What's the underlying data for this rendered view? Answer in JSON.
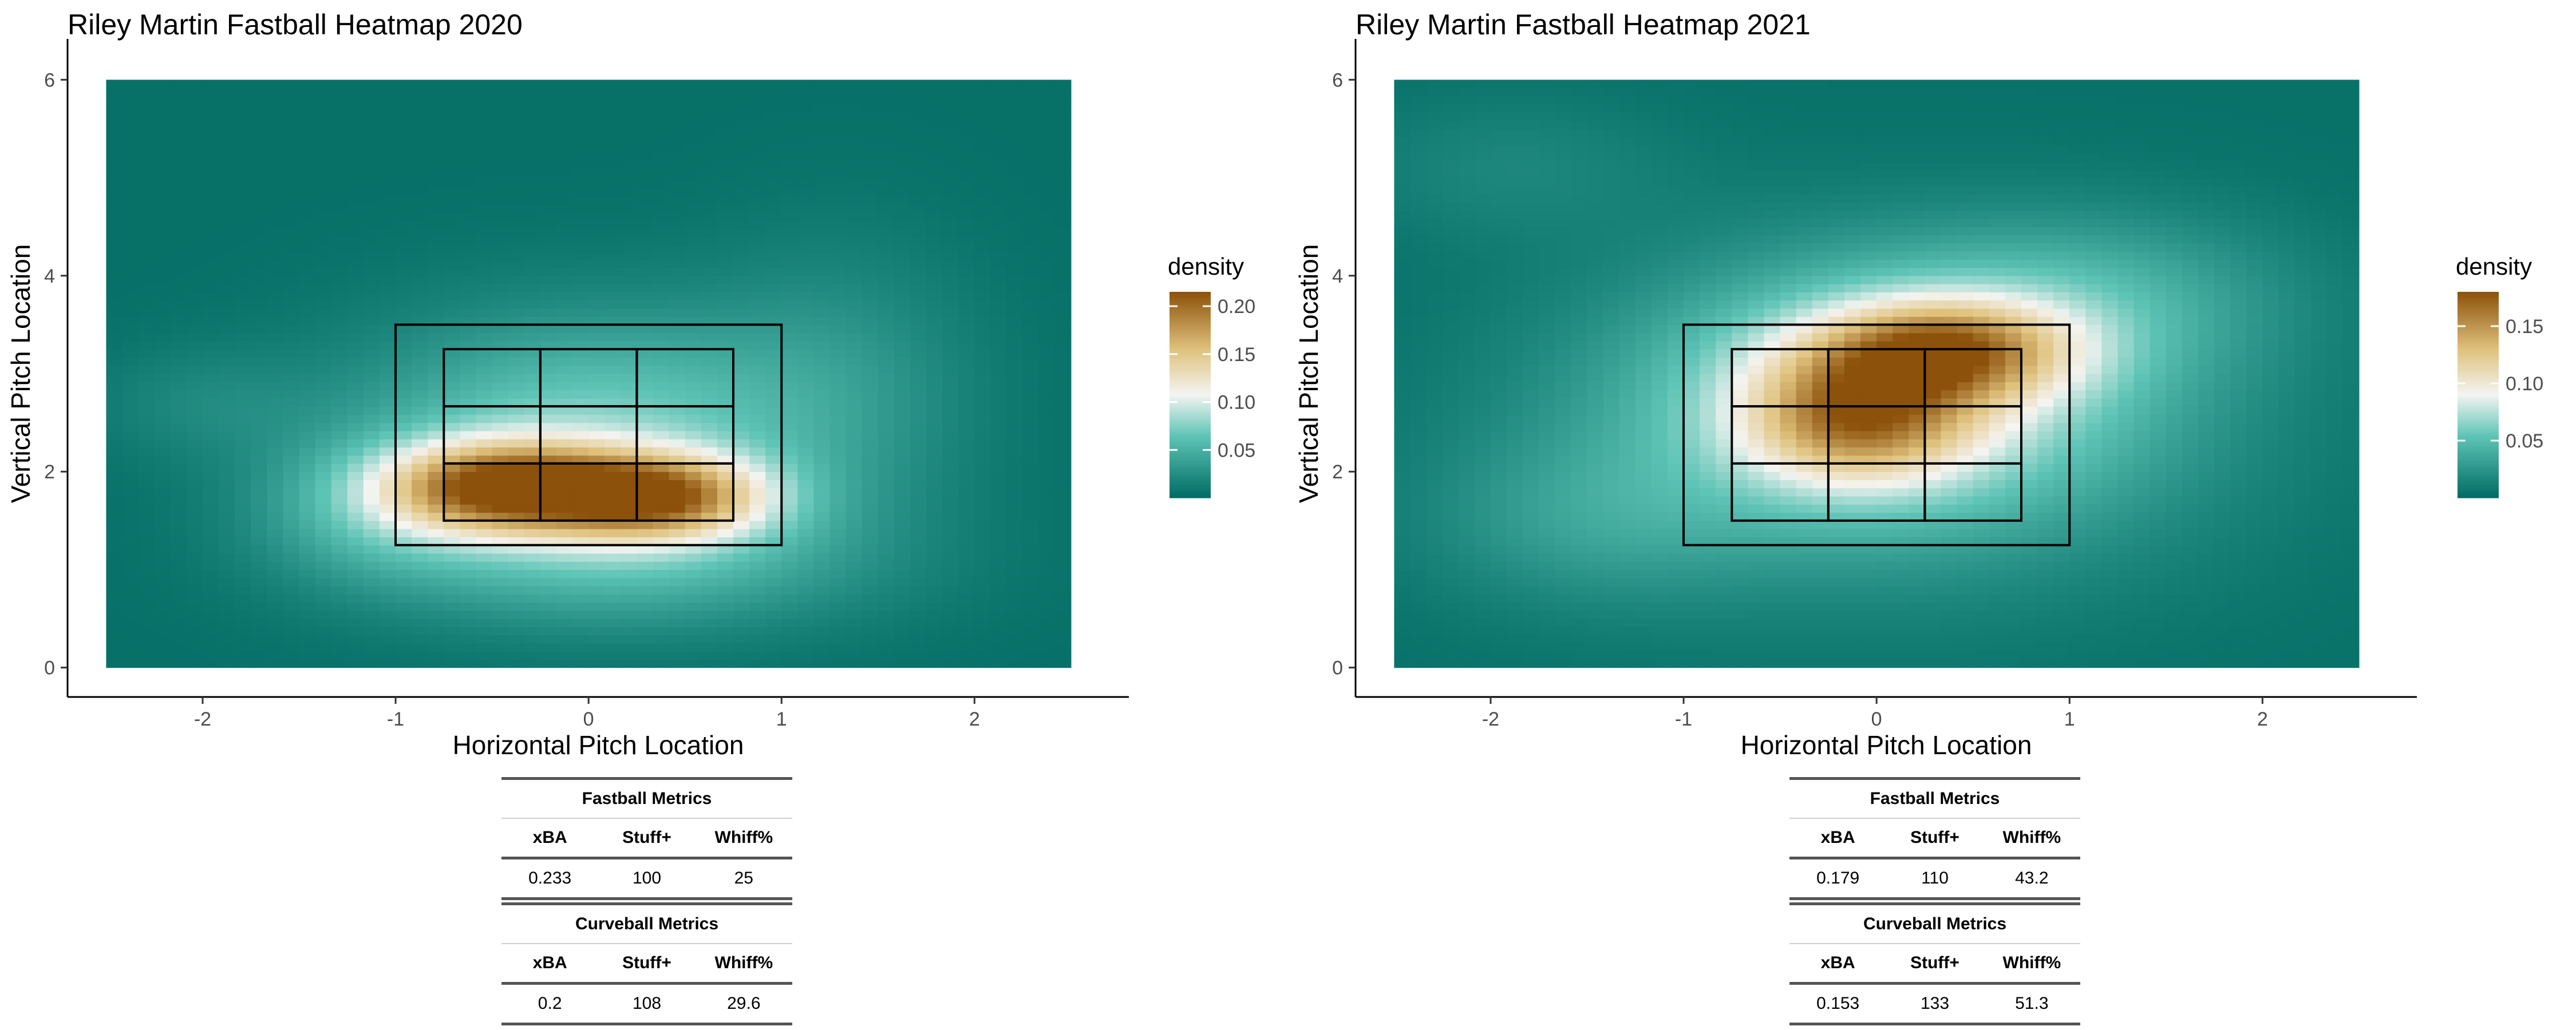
{
  "chart_data": [
    {
      "type": "heatmap",
      "title": "Riley Martin Fastball Heatmap 2020",
      "xlabel": "Horizontal Pitch Location",
      "ylabel": "Vertical Pitch Location",
      "xlim": [
        -2.7,
        2.8
      ],
      "ylim": [
        -0.3,
        6.3
      ],
      "x_ticks": [
        -2,
        -1,
        0,
        1,
        2
      ],
      "y_ticks": [
        0,
        2,
        4,
        6
      ],
      "legend_title": "density",
      "legend_ticks": [
        "0.05",
        "0.10",
        "0.15",
        "0.20"
      ],
      "legend_tick_values": [
        0.05,
        0.1,
        0.15,
        0.2
      ],
      "density_range": [
        0.0,
        0.215
      ],
      "heat_extent": {
        "x": [
          -2.5,
          2.5
        ],
        "y": [
          0.0,
          6.0
        ]
      },
      "strike_zone_outer": {
        "x": [
          -1.0,
          1.0
        ],
        "y": [
          1.25,
          3.5
        ]
      },
      "strike_zone_inner": {
        "x": [
          -0.75,
          0.75
        ],
        "y": [
          1.5,
          3.25
        ],
        "cols": 3,
        "rows": 3
      },
      "hotspots": [
        {
          "x": -0.45,
          "y": 1.85,
          "sx": 0.42,
          "sy": 0.32,
          "amp": 0.16
        },
        {
          "x": 0.35,
          "y": 1.75,
          "sx": 0.4,
          "sy": 0.3,
          "amp": 0.15
        },
        {
          "x": 0.0,
          "y": 2.35,
          "sx": 0.85,
          "sy": 0.85,
          "amp": 0.07
        },
        {
          "x": 0.2,
          "y": 1.1,
          "sx": 0.9,
          "sy": 0.5,
          "amp": 0.04
        },
        {
          "x": -1.1,
          "y": 1.6,
          "sx": 0.45,
          "sy": 0.5,
          "amp": 0.035
        },
        {
          "x": 1.3,
          "y": 3.0,
          "sx": 0.5,
          "sy": 1.0,
          "amp": 0.02
        },
        {
          "x": -2.0,
          "y": 2.7,
          "sx": 0.4,
          "sy": 0.4,
          "amp": 0.015
        }
      ],
      "metrics": {
        "fastball_title": "Fastball Metrics",
        "curveball_title": "Curveball Metrics",
        "headers": [
          "xBA",
          "Stuff+",
          "Whiff%"
        ],
        "fastball_values": [
          "0.233",
          "100",
          "25"
        ],
        "curveball_values": [
          "0.2",
          "108",
          "29.6"
        ]
      }
    },
    {
      "type": "heatmap",
      "title": "Riley Martin Fastball Heatmap 2021",
      "xlabel": "Horizontal Pitch Location",
      "ylabel": "Vertical Pitch Location",
      "xlim": [
        -2.7,
        2.8
      ],
      "ylim": [
        -0.3,
        6.3
      ],
      "x_ticks": [
        -2,
        -1,
        0,
        1,
        2
      ],
      "y_ticks": [
        0,
        2,
        4,
        6
      ],
      "legend_title": "density",
      "legend_ticks": [
        "0.05",
        "0.10",
        "0.15"
      ],
      "legend_tick_values": [
        0.05,
        0.1,
        0.15
      ],
      "density_range": [
        0.0,
        0.18
      ],
      "heat_extent": {
        "x": [
          -2.5,
          2.5
        ],
        "y": [
          0.0,
          6.0
        ]
      },
      "strike_zone_outer": {
        "x": [
          -1.0,
          1.0
        ],
        "y": [
          1.25,
          3.5
        ]
      },
      "strike_zone_inner": {
        "x": [
          -0.75,
          0.75
        ],
        "y": [
          1.5,
          3.25
        ],
        "cols": 3,
        "rows": 3
      },
      "hotspots": [
        {
          "x": 0.35,
          "y": 3.25,
          "sx": 0.45,
          "sy": 0.35,
          "amp": 0.1
        },
        {
          "x": -0.1,
          "y": 2.55,
          "sx": 0.4,
          "sy": 0.45,
          "amp": 0.09
        },
        {
          "x": 0.1,
          "y": 2.9,
          "sx": 0.9,
          "sy": 0.9,
          "amp": 0.06
        },
        {
          "x": 0.0,
          "y": 2.3,
          "sx": 1.2,
          "sy": 1.1,
          "amp": 0.03
        },
        {
          "x": 1.2,
          "y": 3.8,
          "sx": 0.7,
          "sy": 0.6,
          "amp": 0.025
        },
        {
          "x": -1.5,
          "y": 1.5,
          "sx": 0.6,
          "sy": 0.6,
          "amp": 0.02
        },
        {
          "x": -1.9,
          "y": 5.1,
          "sx": 0.6,
          "sy": 0.5,
          "amp": 0.012
        }
      ],
      "metrics": {
        "fastball_title": "Fastball Metrics",
        "curveball_title": "Curveball Metrics",
        "headers": [
          "xBA",
          "Stuff+",
          "Whiff%"
        ],
        "fastball_values": [
          "0.179",
          "110",
          "43.2"
        ],
        "curveball_values": [
          "0.153",
          "133",
          "51.3"
        ]
      }
    }
  ],
  "colors": {
    "low": "#016b63",
    "mid_low": "#5ec4b6",
    "mid": "#f4f4f1",
    "mid_high": "#dfc27d",
    "high": "#8c510a"
  }
}
